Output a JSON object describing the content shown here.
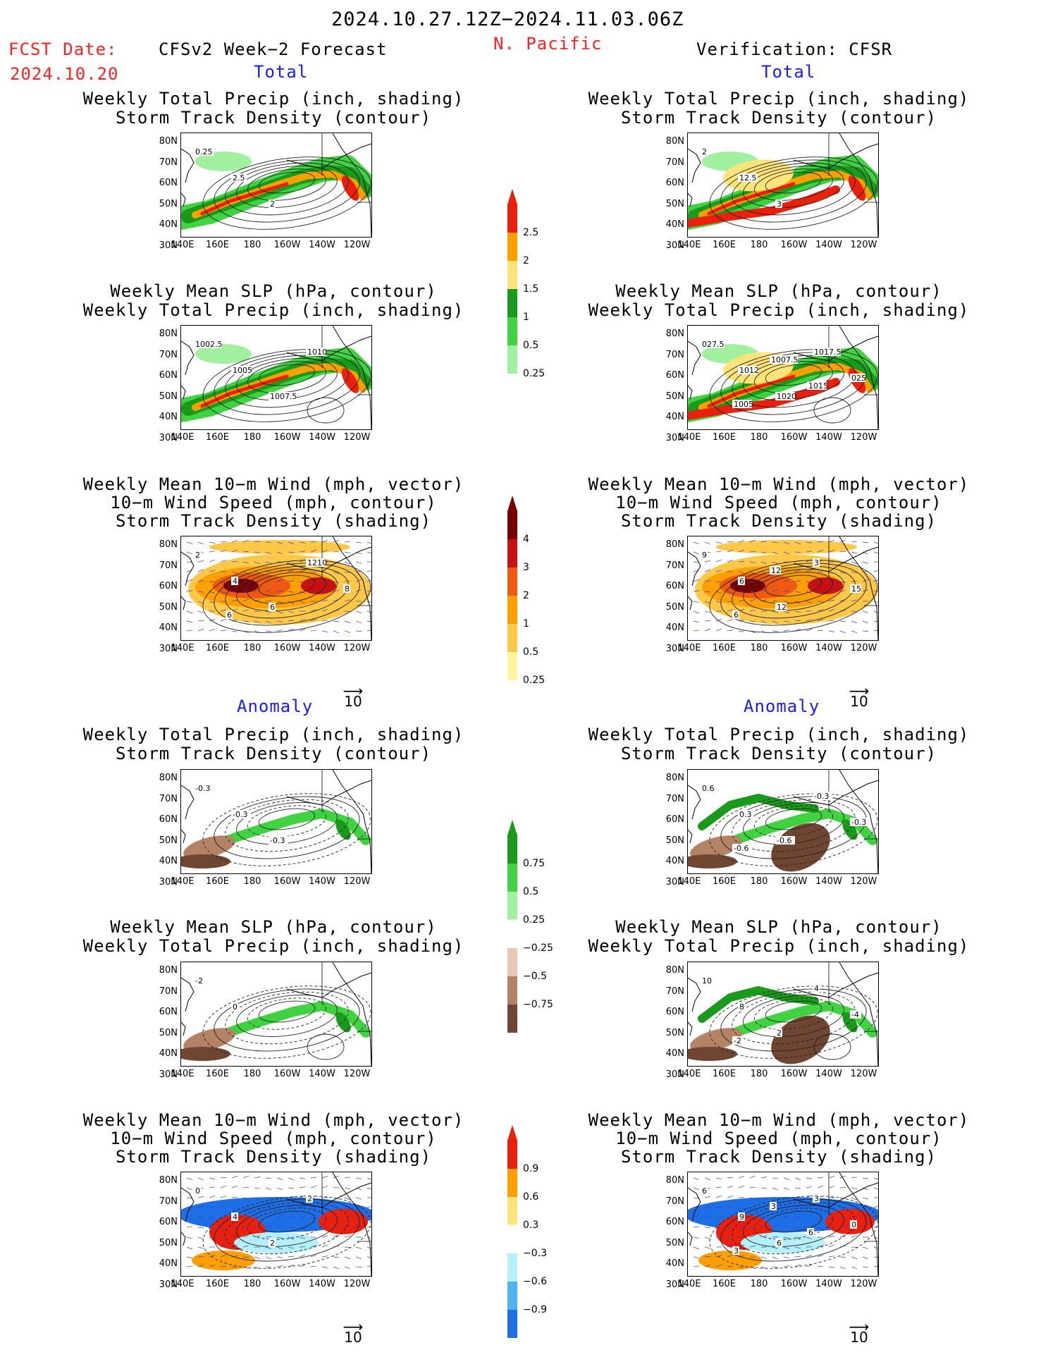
{
  "header": {
    "period": "2024.10.27.12Z−2024.11.03.06Z",
    "fcst_label": "FCST Date:",
    "fcst_date": "2024.10.20",
    "model": "CFSv2 Week−2 Forecast",
    "region": "N. Pacific",
    "verification": "Verification: CFSR"
  },
  "sections": {
    "total": "Total",
    "anomaly": "Anomaly"
  },
  "panel_titles": {
    "precip_storm": [
      "Weekly Total Precip (inch, shading)",
      "Storm Track Density (contour)"
    ],
    "slp_precip": [
      "Weekly Mean SLP (hPa, contour)",
      "Weekly Total Precip (inch, shading)"
    ],
    "wind": [
      "Weekly Mean 10−m Wind (mph, vector)",
      "10−m Wind Speed (mph, contour)",
      "Storm Track Density (shading)"
    ]
  },
  "axes": {
    "lat": [
      "80N",
      "70N",
      "60N",
      "50N",
      "40N",
      "30N"
    ],
    "lon": [
      "140E",
      "160E",
      "180",
      "160W",
      "140W",
      "120W"
    ]
  },
  "vector_scale": "10",
  "colorbars": [
    {
      "name": "precip-total",
      "labels": [
        "2.5",
        "2",
        "1.5",
        "1",
        "0.5",
        "0.25"
      ],
      "colors": [
        "#e8200c",
        "#ff9f00",
        "#ffe47a",
        "#1a9a1a",
        "#41d241",
        "#a0f0a0"
      ]
    },
    {
      "name": "storm-total",
      "labels": [
        "4",
        "3",
        "2",
        "1",
        "0.5",
        "0.25"
      ],
      "colors": [
        "#7a0000",
        "#c81010",
        "#ef5a10",
        "#ff9f00",
        "#ffc846",
        "#fff5a0"
      ]
    },
    {
      "name": "precip-anom",
      "labels": [
        "0.75",
        "0.5",
        "0.25",
        "−0.25",
        "−0.5",
        "−0.75"
      ],
      "colors": [
        "#1a9a1a",
        "#41d241",
        "#a0f0a0",
        "#ffffff",
        "#e6c8b4",
        "#b48264",
        "#6e4632"
      ]
    },
    {
      "name": "storm-anom",
      "labels": [
        "0.9",
        "0.6",
        "0.3",
        "−0.3",
        "−0.6",
        "−0.9"
      ],
      "colors": [
        "#e8200c",
        "#ff9f00",
        "#ffe47a",
        "#ffffff",
        "#b4f0fa",
        "#50b4f0",
        "#1e6ee6"
      ]
    }
  ],
  "contour_labels": {
    "p1": [
      "0.25",
      "2.5",
      "2"
    ],
    "p2": [
      "2",
      "12.5",
      "3"
    ],
    "p3": [
      "1002.5",
      "1005",
      "1007.5",
      "1010"
    ],
    "p4": [
      "027.5",
      "1012",
      "1020",
      "1017.5",
      "025",
      "1005",
      "1007.5",
      "1015"
    ],
    "p5": [
      "2",
      "4",
      "6",
      "1210",
      "8",
      "6"
    ],
    "p6": [
      "9",
      "6",
      "12",
      "3",
      "15",
      "6",
      "12"
    ],
    "p7": [
      "-0.3",
      "-0.3",
      "-0.3"
    ],
    "p8": [
      "0.6",
      "0.3",
      "-0.6",
      "-0.3",
      "-0.3",
      "-0.6"
    ],
    "p9": [
      "-2",
      "0"
    ],
    "p10": [
      "10",
      "8",
      "2",
      "4",
      "-4",
      "-2"
    ],
    "p11": [
      "0",
      "4",
      "2",
      "2"
    ],
    "p12": [
      "6",
      "9",
      "6",
      "3",
      "0",
      "3",
      "3",
      "6"
    ]
  }
}
